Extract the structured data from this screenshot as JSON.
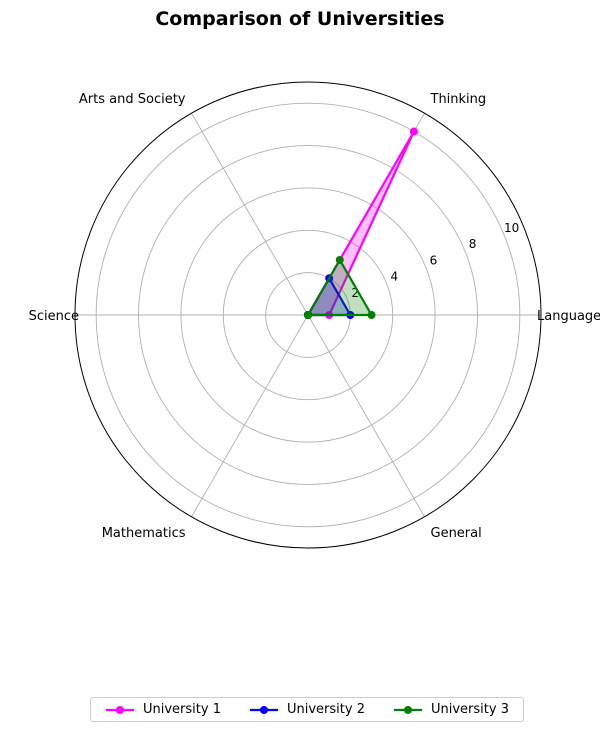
{
  "chart_data": {
    "type": "radar",
    "title": "Comparison of Universities",
    "axes": [
      "Language",
      "Thinking",
      "Arts and Society",
      "Science",
      "Mathematics",
      "General"
    ],
    "radial_ticks": [
      "2",
      "4",
      "6",
      "8",
      "10"
    ],
    "rlim": [
      0,
      11
    ],
    "grid": true,
    "legend_position": "bottom-center",
    "series": [
      {
        "name": "University 1",
        "color": "#ff00ff",
        "values": [
          1,
          10,
          0,
          0,
          0,
          0
        ]
      },
      {
        "name": "University 2",
        "color": "#0000ff",
        "values": [
          2,
          2,
          0,
          0,
          0,
          0
        ]
      },
      {
        "name": "University 3",
        "color": "#008000",
        "values": [
          3,
          3,
          0,
          0,
          0,
          0
        ]
      }
    ]
  }
}
